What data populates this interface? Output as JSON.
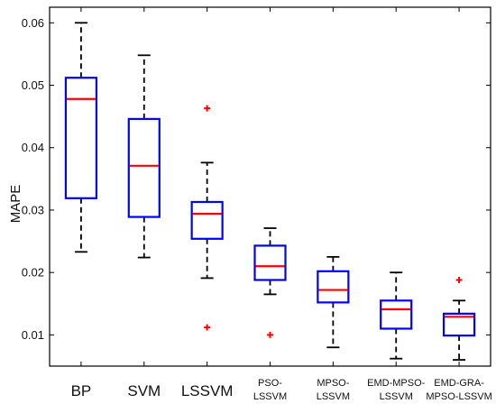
{
  "chart_data": {
    "type": "boxplot",
    "ylabel": "MAPE",
    "xlabel": "",
    "title": "",
    "ylim": [
      0.005,
      0.0625
    ],
    "yticks": [
      0.01,
      0.02,
      0.03,
      0.04,
      0.05,
      0.06
    ],
    "ytick_labels": [
      "0.01",
      "0.02",
      "0.03",
      "0.04",
      "0.05",
      "0.06"
    ],
    "grid": false,
    "categories": [
      {
        "lines": [
          "BP"
        ]
      },
      {
        "lines": [
          "SVM"
        ]
      },
      {
        "lines": [
          "LSSVM"
        ]
      },
      {
        "lines": [
          "PSO-",
          "LSSVM"
        ]
      },
      {
        "lines": [
          "MPSO-",
          "LSSVM"
        ]
      },
      {
        "lines": [
          "EMD-MPSO-",
          "LSSVM"
        ]
      },
      {
        "lines": [
          "EMD-GRA-",
          "MPSO-LSSVM"
        ]
      }
    ],
    "boxes": [
      {
        "whisker_low": 0.0233,
        "q1": 0.0319,
        "median": 0.0478,
        "q3": 0.0512,
        "whisker_high": 0.06,
        "outliers": []
      },
      {
        "whisker_low": 0.0224,
        "q1": 0.0289,
        "median": 0.0371,
        "q3": 0.0446,
        "whisker_high": 0.0548,
        "outliers": []
      },
      {
        "whisker_low": 0.0191,
        "q1": 0.0254,
        "median": 0.0294,
        "q3": 0.0313,
        "whisker_high": 0.0376,
        "outliers": [
          0.0463,
          0.0112
        ]
      },
      {
        "whisker_low": 0.0165,
        "q1": 0.0188,
        "median": 0.021,
        "q3": 0.0243,
        "whisker_high": 0.0271,
        "outliers": [
          0.01
        ]
      },
      {
        "whisker_low": 0.008,
        "q1": 0.0152,
        "median": 0.0172,
        "q3": 0.0202,
        "whisker_high": 0.0225,
        "outliers": []
      },
      {
        "whisker_low": 0.0062,
        "q1": 0.011,
        "median": 0.0141,
        "q3": 0.0155,
        "whisker_high": 0.02,
        "outliers": []
      },
      {
        "whisker_low": 0.006,
        "q1": 0.0099,
        "median": 0.0129,
        "q3": 0.0134,
        "whisker_high": 0.0155,
        "outliers": [
          0.0188
        ]
      }
    ],
    "colors": {
      "box": "#0000ff",
      "median": "#ff0000",
      "whisker": "#000000",
      "outlier": "#ff0000",
      "axes": "#000000"
    }
  }
}
